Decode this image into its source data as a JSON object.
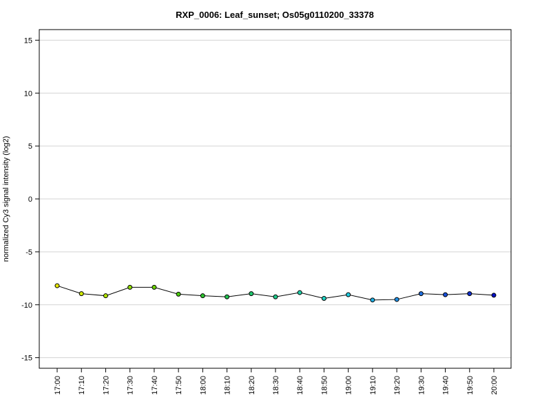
{
  "chart_data": {
    "type": "line",
    "title": "RXP_0006: Leaf_sunset; Os05g0110200_33378",
    "xlabel": "",
    "ylabel": "normalized Cy3 signal intensity (log2)",
    "ylim": [
      -16,
      16
    ],
    "yticks": [
      -15,
      -10,
      -5,
      0,
      5,
      10,
      15
    ],
    "grid": "horizontal",
    "categories": [
      "17:00",
      "17:10",
      "17:20",
      "17:30",
      "17:40",
      "17:50",
      "18:00",
      "18:10",
      "18:20",
      "18:30",
      "18:40",
      "18:50",
      "19:00",
      "19:10",
      "19:20",
      "19:30",
      "19:40",
      "19:50",
      "20:00"
    ],
    "values": [
      -8.2,
      -8.95,
      -9.15,
      -8.35,
      -8.35,
      -9.0,
      -9.15,
      -9.25,
      -8.95,
      -9.25,
      -8.85,
      -9.4,
      -9.05,
      -9.55,
      -9.5,
      -8.95,
      -9.05,
      -8.95,
      -9.1
    ],
    "point_colors": [
      "#e6e600",
      "#d2ec00",
      "#b0e400",
      "#8fdc00",
      "#6cd400",
      "#4ccc10",
      "#2ec430",
      "#22c450",
      "#20c86e",
      "#20cc8c",
      "#20d0aa",
      "#20d4c4",
      "#20cce0",
      "#20b0e4",
      "#2090e4",
      "#2070e0",
      "#1850dc",
      "#1030d0",
      "#0010c8"
    ],
    "line_color": "#000000"
  }
}
